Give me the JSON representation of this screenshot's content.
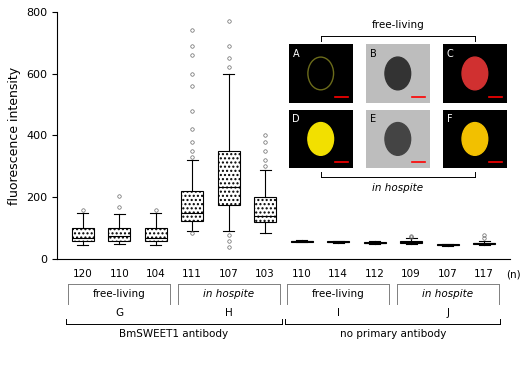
{
  "chart_data": {
    "type": "box",
    "y_label": "fluorescence intensity",
    "ylim": [
      0,
      800
    ],
    "yticks": [
      0,
      200,
      400,
      600,
      800
    ],
    "n_label": "(n)",
    "color": "#000000",
    "treatments": [
      {
        "label": "BmSWEET1 antibody",
        "groups": [
          {
            "label": "free-living",
            "letter": "G",
            "boxes": [
              {
                "n": 120,
                "whislo": 45,
                "q1": 58,
                "med": 68,
                "q3": 100,
                "whishi": 150,
                "fliers": [
                  160
                ]
              },
              {
                "n": 110,
                "whislo": 48,
                "q1": 60,
                "med": 75,
                "q3": 100,
                "whishi": 145,
                "fliers": [
                  170,
                  205
                ]
              },
              {
                "n": 104,
                "whislo": 45,
                "q1": 58,
                "med": 70,
                "q3": 100,
                "whishi": 150,
                "fliers": [
                  160
                ]
              }
            ]
          },
          {
            "label": "in hospite",
            "letter": "H",
            "boxes": [
              {
                "n": 111,
                "whislo": 90,
                "q1": 125,
                "med": 150,
                "q3": 220,
                "whishi": 320,
                "fliers": [
                  85,
                  330,
                  350,
                  380,
                  420,
                  480,
                  560,
                  600,
                  660,
                  690,
                  740
                ]
              },
              {
                "n": 107,
                "whislo": 90,
                "q1": 175,
                "med": 235,
                "q3": 350,
                "whishi": 600,
                "fliers": [
                  40,
                  60,
                  80,
                  620,
                  650,
                  690,
                  770
                ]
              },
              {
                "n": 103,
                "whislo": 85,
                "q1": 120,
                "med": 140,
                "q3": 200,
                "whishi": 290,
                "fliers": [
                  300,
                  320,
                  350,
                  380,
                  400
                ]
              }
            ]
          }
        ]
      },
      {
        "label": "no primary antibody",
        "groups": [
          {
            "label": "free-living",
            "letter": "I",
            "boxes": [
              {
                "n": 110,
                "whislo": 55,
                "q1": 57,
                "med": 58,
                "q3": 59,
                "whishi": 61,
                "fliers": []
              },
              {
                "n": 114,
                "whislo": 53,
                "q1": 55,
                "med": 57,
                "q3": 58,
                "whishi": 60,
                "fliers": []
              },
              {
                "n": 112,
                "whislo": 50,
                "q1": 52,
                "med": 54,
                "q3": 56,
                "whishi": 58,
                "fliers": []
              }
            ]
          },
          {
            "label": "in hospite",
            "letter": "J",
            "boxes": [
              {
                "n": 109,
                "whislo": 48,
                "q1": 53,
                "med": 56,
                "q3": 60,
                "whishi": 68,
                "fliers": [
                  72,
                  75
                ]
              },
              {
                "n": 107,
                "whislo": 44,
                "q1": 46,
                "med": 47,
                "q3": 48,
                "whishi": 50,
                "fliers": []
              },
              {
                "n": 117,
                "whislo": 45,
                "q1": 49,
                "med": 52,
                "q3": 54,
                "whishi": 60,
                "fliers": [
                  70,
                  80
                ]
              }
            ]
          }
        ]
      }
    ],
    "inset": {
      "panels": [
        {
          "title": "free-living",
          "letters": [
            "A",
            "B",
            "C"
          ]
        },
        {
          "title": "in hospite",
          "letters": [
            "D",
            "E",
            "F"
          ]
        }
      ]
    }
  }
}
